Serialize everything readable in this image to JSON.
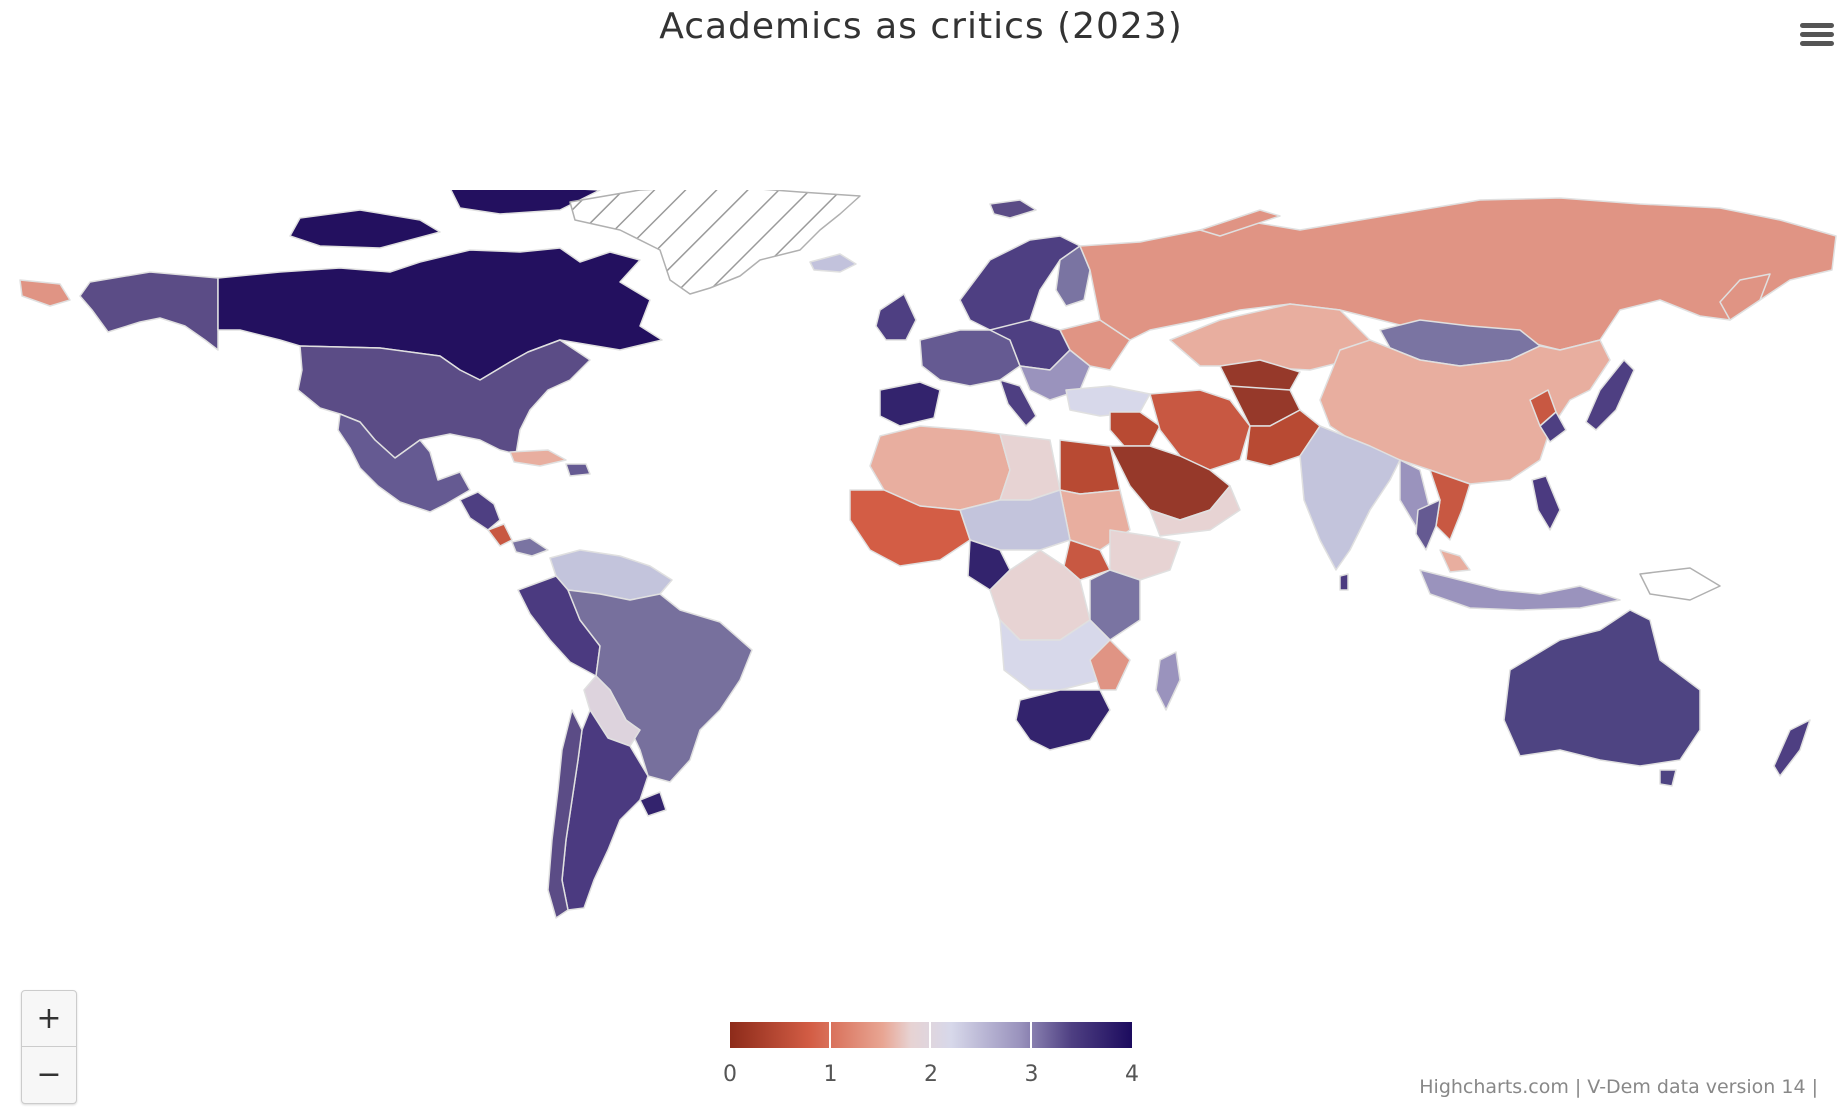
{
  "title": "Academics as critics (2023)",
  "menu": {
    "icon": "hamburger-menu-icon"
  },
  "zoom": {
    "in_label": "+",
    "out_label": "−"
  },
  "legend": {
    "min": 0,
    "max": 4,
    "ticks": [
      "0",
      "1",
      "2",
      "3",
      "4"
    ],
    "colors": [
      "#8d2b1a",
      "#d35d45",
      "#e8a593",
      "#e7d3d3",
      "#d7d8ea",
      "#9a93bd",
      "#4e3f82",
      "#1c0b5e"
    ]
  },
  "credits": "Highcharts.com | V-Dem data version 14 |",
  "map_data": {
    "type": "choropleth",
    "regions": [
      {
        "name": "Canada",
        "value": 4.0,
        "color": "#23105f"
      },
      {
        "name": "Alaska",
        "value": 3.3,
        "color": "#5b4c86"
      },
      {
        "name": "United States",
        "value": 3.3,
        "color": "#5b4c86"
      },
      {
        "name": "Greenland",
        "value": null,
        "color": "#ffffff"
      },
      {
        "name": "Mexico",
        "value": 3.2,
        "color": "#655a92"
      },
      {
        "name": "Brazil",
        "value": 2.9,
        "color": "#77709d"
      },
      {
        "name": "Argentina",
        "value": 3.4,
        "color": "#4b3a80"
      },
      {
        "name": "Russia",
        "value": 0.9,
        "color": "#e09484"
      },
      {
        "name": "China",
        "value": 1.3,
        "color": "#e8ae9f"
      },
      {
        "name": "Mongolia",
        "value": 2.9,
        "color": "#7a74a2"
      },
      {
        "name": "India",
        "value": 2.2,
        "color": "#c3c4dc"
      },
      {
        "name": "Australia",
        "value": 3.4,
        "color": "#4e4482"
      },
      {
        "name": "Saudi Arabia",
        "value": 0.2,
        "color": "#96392a"
      },
      {
        "name": "Iran",
        "value": 0.5,
        "color": "#c85842"
      },
      {
        "name": "Egypt",
        "value": 0.4,
        "color": "#b84a33"
      },
      {
        "name": "South Africa",
        "value": 3.7,
        "color": "#33236d"
      }
    ]
  }
}
